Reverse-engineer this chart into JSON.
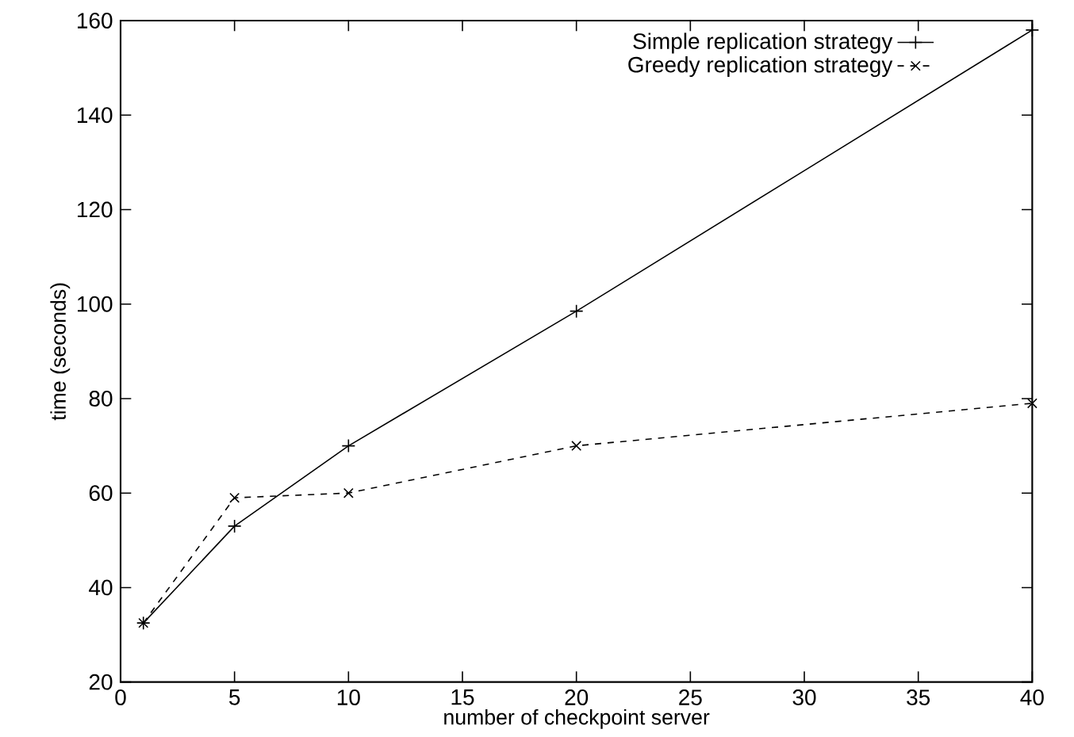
{
  "chart_data": {
    "type": "line",
    "xlabel": "number of checkpoint server",
    "ylabel": "time (seconds)",
    "x": [
      1,
      5,
      10,
      20,
      40
    ],
    "series": [
      {
        "name": "Simple replication strategy",
        "color": "#000000",
        "values": [
          32.5,
          53,
          70,
          98.5,
          158
        ],
        "marker": "plus",
        "line_style": "solid"
      },
      {
        "name": "Greedy replication strategy",
        "color": "#000000",
        "values": [
          32.5,
          59,
          60,
          70,
          79
        ],
        "marker": "cross",
        "line_style": "dashed"
      }
    ],
    "xlim": [
      0,
      40
    ],
    "ylim": [
      20,
      160
    ],
    "xticks": [
      0,
      5,
      10,
      15,
      20,
      25,
      30,
      35,
      40
    ],
    "yticks": [
      20,
      40,
      60,
      80,
      100,
      120,
      140,
      160
    ],
    "grid": false,
    "legend": "top right"
  }
}
